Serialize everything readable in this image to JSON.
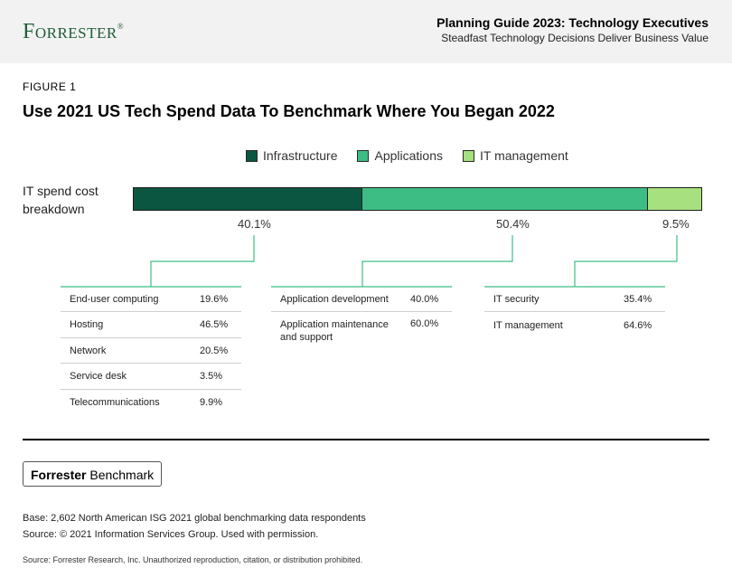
{
  "header": {
    "logo": "Forrester",
    "logo_mark": "®",
    "title": "Planning Guide 2023: Technology Executives",
    "subtitle": "Steadfast Technology Decisions Deliver Business Value"
  },
  "figure": {
    "label": "FIGURE 1",
    "title": "Use 2021 US Tech Spend Data To Benchmark Where You Began 2022"
  },
  "colors": {
    "infrastructure": "#0b5640",
    "applications": "#3dbd84",
    "it_management": "#a7e07f",
    "connector": "#3dbd84"
  },
  "chart_data": {
    "type": "bar",
    "orientation": "horizontal-stacked",
    "categories": [
      "IT spend cost breakdown"
    ],
    "category_label_lines": [
      "IT spend cost",
      "breakdown"
    ],
    "series": [
      {
        "name": "Infrastructure",
        "values": [
          40.1
        ],
        "label": "40.1%"
      },
      {
        "name": "Applications",
        "values": [
          50.4
        ],
        "label": "50.4%"
      },
      {
        "name": "IT management",
        "values": [
          9.5
        ],
        "label": "9.5%"
      }
    ],
    "xlim": [
      0,
      100
    ],
    "legend_position": "top",
    "breakdowns": [
      {
        "series": "Infrastructure",
        "rows": [
          {
            "name": "End-user computing",
            "value": "19.6%"
          },
          {
            "name": "Hosting",
            "value": "46.5%"
          },
          {
            "name": "Network",
            "value": "20.5%"
          },
          {
            "name": "Service desk",
            "value": "3.5%"
          },
          {
            "name": "Telecommunications",
            "value": "9.9%"
          }
        ]
      },
      {
        "series": "Applications",
        "rows": [
          {
            "name": "Application development",
            "value": "40.0%"
          },
          {
            "name": "Application maintenance and support",
            "value": "60.0%",
            "lines": [
              "Application maintenance",
              "and support"
            ]
          }
        ]
      },
      {
        "series": "IT management",
        "rows": [
          {
            "name": "IT security",
            "value": "35.4%"
          },
          {
            "name": "IT management",
            "value": "64.6%"
          }
        ]
      }
    ]
  },
  "footer": {
    "benchmark_bold": "Forrester",
    "benchmark_rest": "Benchmark",
    "base": "Base: 2,602 North American ISG 2021 global benchmarking data respondents",
    "source": "Source: © 2021 Information Services Group. Used with permission.",
    "copyright": "Source: Forrester Research, Inc. Unauthorized reproduction, citation, or distribution prohibited."
  }
}
